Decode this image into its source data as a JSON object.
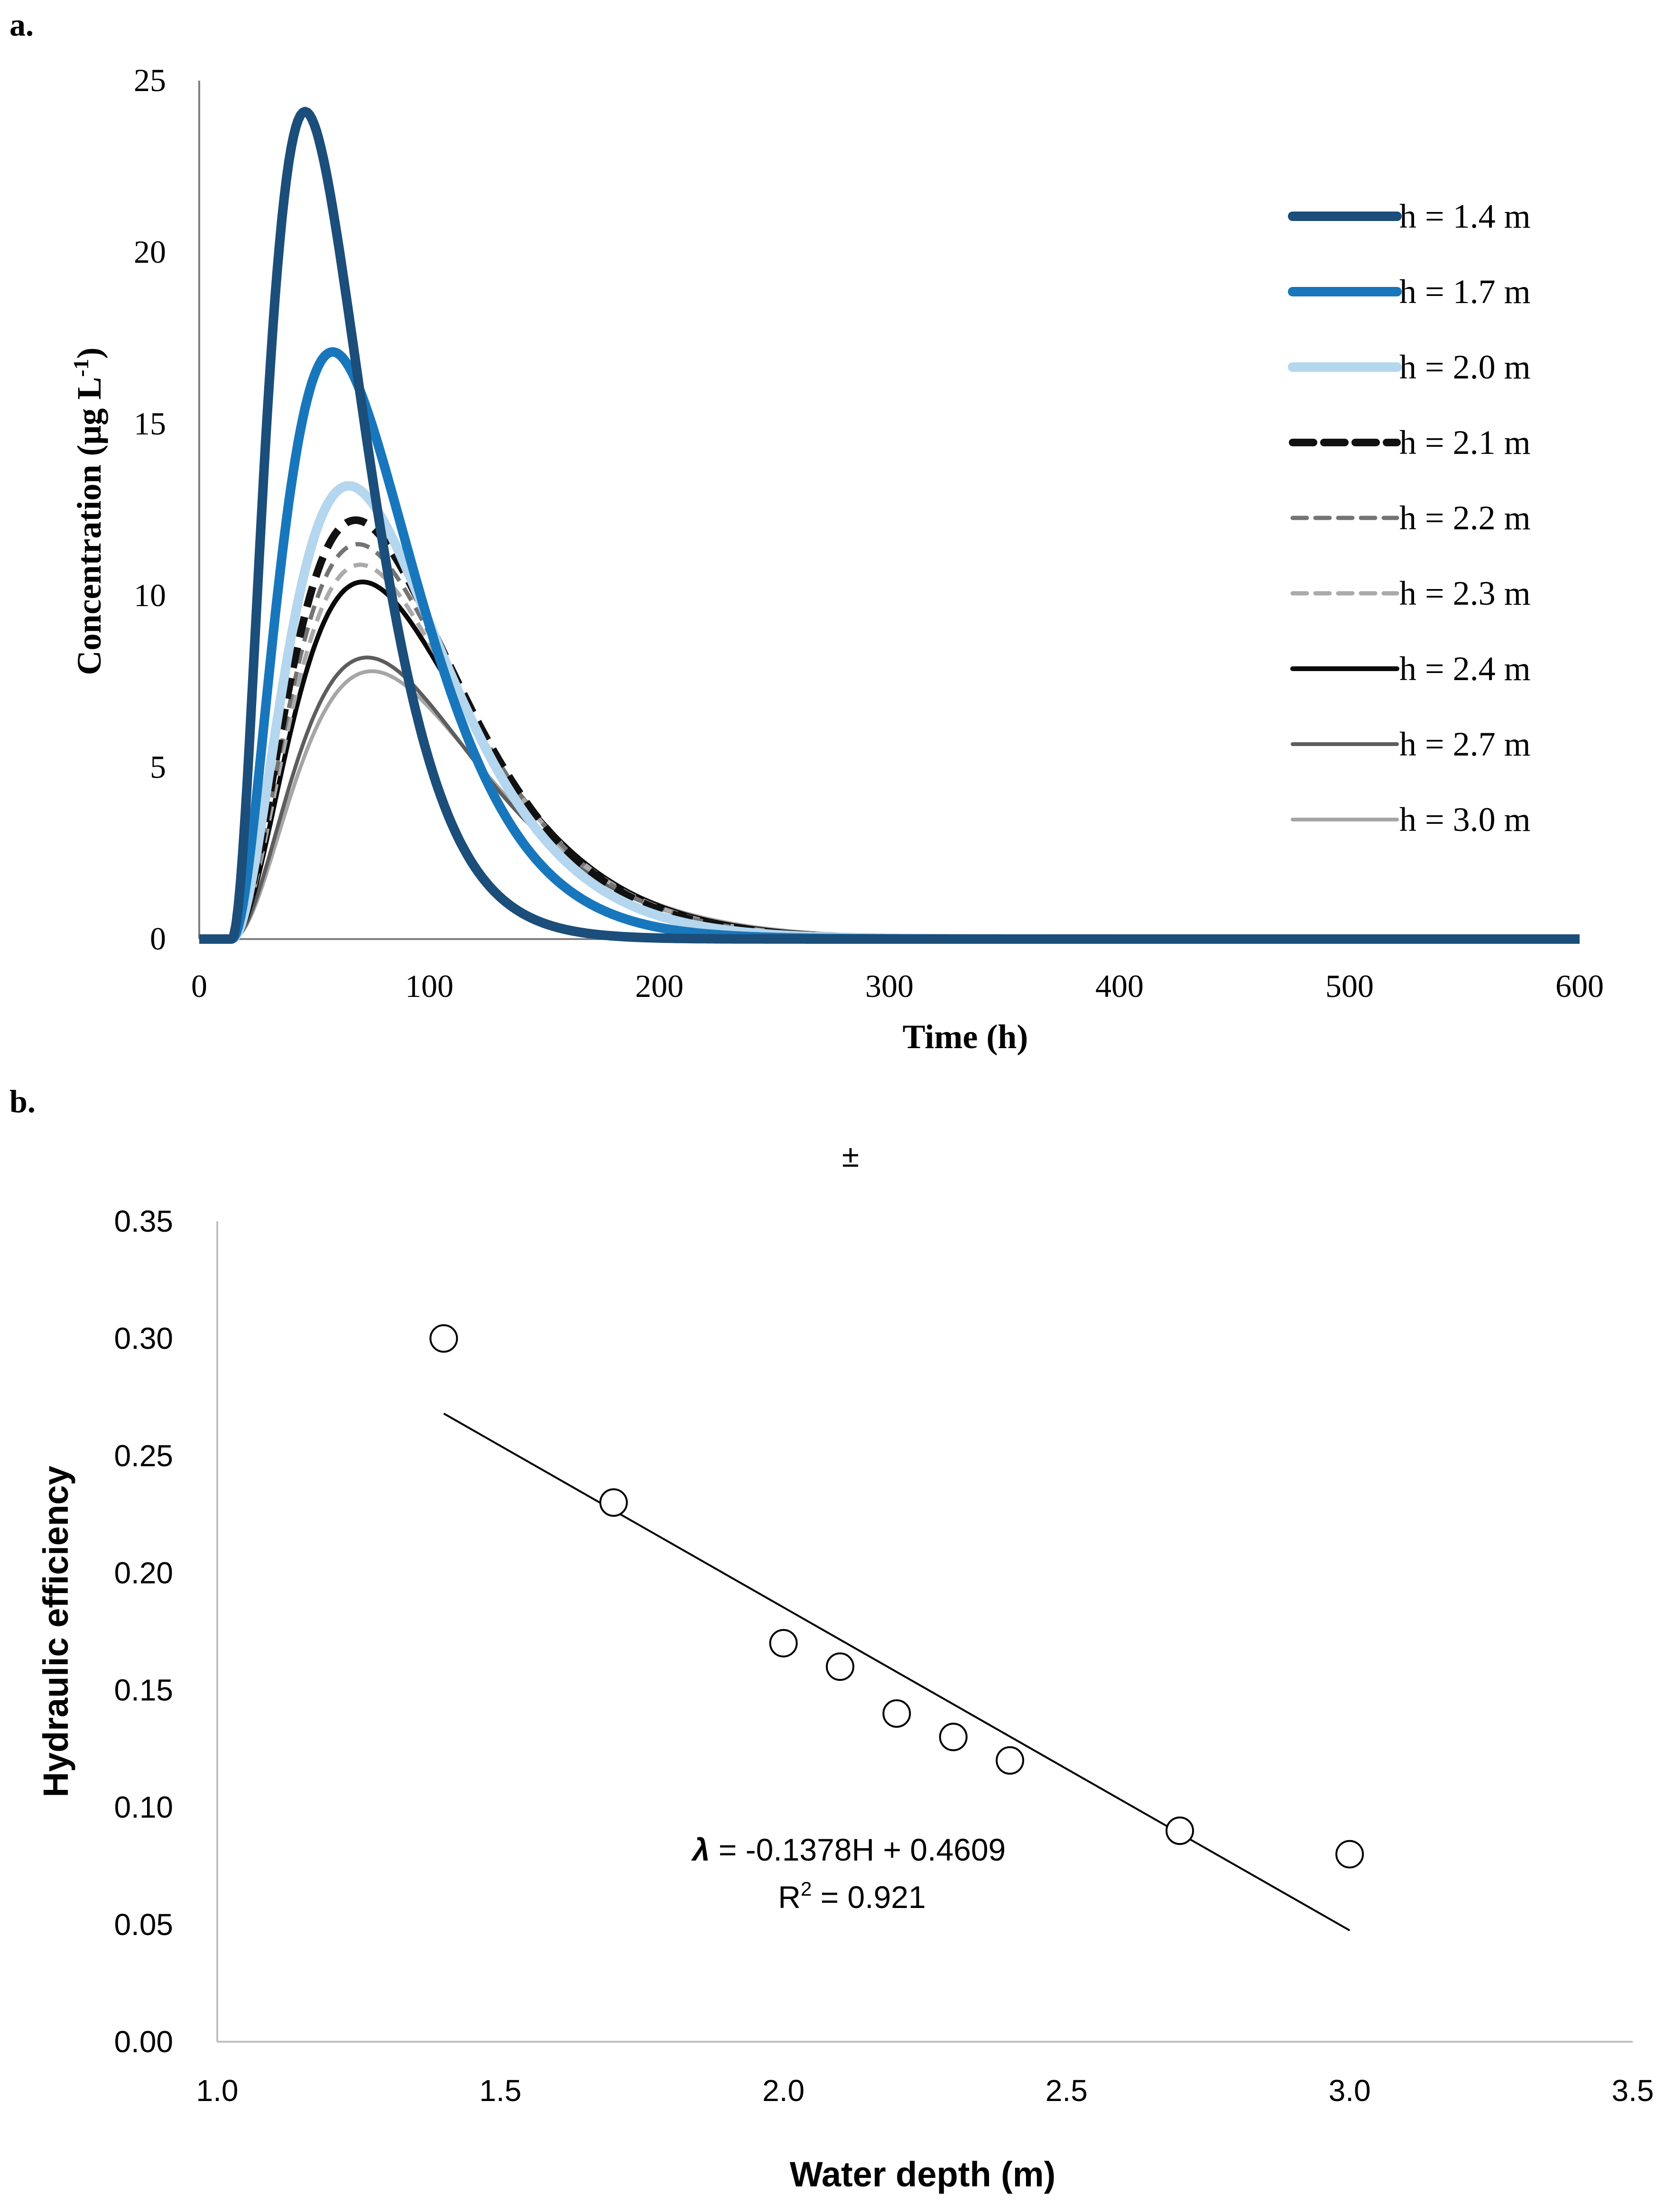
{
  "chart_data": [
    {
      "type": "line",
      "panel_label": "a.",
      "xlabel": "Time (h)",
      "ylabel": "Concentration (μg L",
      "ylabel_sup": "-1",
      "ylabel_close": ")",
      "xlim": [
        0,
        600
      ],
      "ylim": [
        0,
        25
      ],
      "xticks": [
        0,
        100,
        200,
        300,
        400,
        500,
        600
      ],
      "yticks": [
        0,
        5,
        10,
        15,
        20,
        25
      ],
      "grid": false,
      "legend_position": "right",
      "series": [
        {
          "name": "h = 1.4 m",
          "peak_time": 46,
          "peak_value": 24.1,
          "color": "#1b4e7a",
          "style": "solid",
          "width": 20
        },
        {
          "name": "h = 1.7 m",
          "peak_time": 58,
          "peak_value": 17.1,
          "color": "#1877bc",
          "style": "solid",
          "width": 20
        },
        {
          "name": "h = 2.0 m",
          "peak_time": 65,
          "peak_value": 13.2,
          "color": "#b4d6ee",
          "style": "solid",
          "width": 20
        },
        {
          "name": "h = 2.1 m",
          "peak_time": 68,
          "peak_value": 12.2,
          "color": "#111111",
          "style": "dashed-thick",
          "width": 16
        },
        {
          "name": "h = 2.2 m",
          "peak_time": 69,
          "peak_value": 11.5,
          "color": "#747474",
          "style": "dashed",
          "width": 9
        },
        {
          "name": "h = 2.3 m",
          "peak_time": 70,
          "peak_value": 10.9,
          "color": "#aaaaaa",
          "style": "dashed",
          "width": 9
        },
        {
          "name": "h = 2.4 m",
          "peak_time": 71,
          "peak_value": 10.4,
          "color": "#0a0a0a",
          "style": "solid",
          "width": 10
        },
        {
          "name": "h = 2.7 m",
          "peak_time": 73,
          "peak_value": 8.2,
          "color": "#5d5d5d",
          "style": "solid",
          "width": 8
        },
        {
          "name": "h = 3.0 m",
          "peak_time": 75,
          "peak_value": 7.8,
          "color": "#a6a6a6",
          "style": "solid",
          "width": 8
        }
      ]
    },
    {
      "type": "scatter",
      "panel_label": "b.",
      "subtitle": "±",
      "xlabel": "Water depth (m)",
      "ylabel": "Hydraulic efficiency",
      "xlim": [
        1.0,
        3.5
      ],
      "ylim": [
        0.0,
        0.35
      ],
      "xticks": [
        "1.0",
        "1.5",
        "2.0",
        "2.5",
        "3.0",
        "3.5"
      ],
      "yticks": [
        "0.00",
        "0.05",
        "0.10",
        "0.15",
        "0.20",
        "0.25",
        "0.30",
        "0.35"
      ],
      "grid": false,
      "x": [
        1.4,
        1.7,
        2.0,
        2.1,
        2.2,
        2.3,
        2.4,
        2.7,
        3.0
      ],
      "y": [
        0.3,
        0.23,
        0.17,
        0.16,
        0.14,
        0.13,
        0.12,
        0.09,
        0.08
      ],
      "trendline": {
        "slope": -0.1378,
        "intercept": 0.4609,
        "x_range": [
          1.4,
          3.0
        ]
      },
      "equation_symbol": "λ",
      "equation_text": " = -0.1378H + 0.4609",
      "r2_label": "R",
      "r2_sup": "2",
      "r2_value": " = 0.921"
    }
  ]
}
